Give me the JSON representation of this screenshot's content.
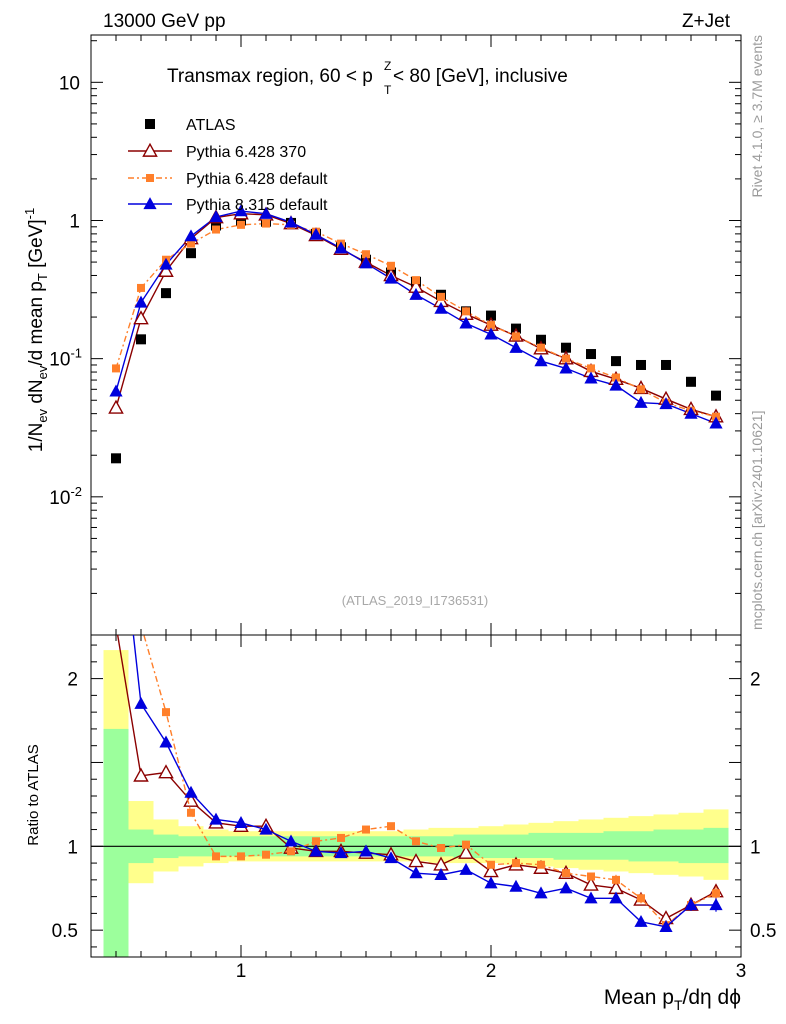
{
  "header": {
    "left": "13000 GeV pp",
    "right": "Z+Jet"
  },
  "side": {
    "rivet": "Rivet 4.1.0, ≥ 3.7M events",
    "mcplots": "mcplots.cern.ch [arXiv:2401.10621]"
  },
  "chart_data": {
    "type": "scatter",
    "title": "Transmax region, 60 < p_T^Z < 80 [GeV], inclusive",
    "watermark": "(ATLAS_2019_I1736531)",
    "xlabel": "Mean p_T/dη dϕ",
    "ylabel": "1/N_ev dN_ev/d mean p_T [GeV]^-1",
    "ratio_ylabel": "Ratio to ATLAS",
    "xlim": [
      0.4,
      3.0
    ],
    "ylim": [
      0.001,
      22
    ],
    "ratio_ylim": [
      0.34,
      2.26
    ],
    "x_ticks": [
      "1",
      "2",
      "3"
    ],
    "y_ticks": [
      "10",
      "1",
      "10^-1",
      "10^-2"
    ],
    "ratio_ticks": [
      "2",
      "1",
      "0.5"
    ],
    "legend": [
      "ATLAS",
      "Pythia 6.428 370",
      "Pythia 6.428 default",
      "Pythia 8.315 default"
    ],
    "x": [
      0.5,
      0.6,
      0.7,
      0.8,
      0.9,
      1.0,
      1.1,
      1.2,
      1.3,
      1.4,
      1.5,
      1.6,
      1.7,
      1.8,
      1.9,
      2.0,
      2.1,
      2.2,
      2.3,
      2.4,
      2.5,
      2.6,
      2.7,
      2.8,
      2.9
    ],
    "data": {
      "name": "ATLAS",
      "values": [
        0.019,
        0.138,
        0.298,
        0.58,
        0.92,
        1.0,
        0.98,
        0.96,
        0.8,
        0.64,
        0.52,
        0.42,
        0.36,
        0.29,
        0.22,
        0.205,
        0.165,
        0.137,
        0.12,
        0.108,
        0.096,
        0.09,
        0.09,
        0.068,
        0.054
      ]
    },
    "series": [
      {
        "name": "Pythia 6.428 370",
        "color": "#8b0000",
        "marker": "triangle-open",
        "values": [
          0.044,
          0.195,
          0.43,
          0.74,
          1.05,
          1.12,
          1.1,
          0.95,
          0.78,
          0.62,
          0.5,
          0.4,
          0.33,
          0.26,
          0.21,
          0.175,
          0.146,
          0.118,
          0.1,
          0.081,
          0.071,
          0.061,
          0.051,
          0.043,
          0.038
        ],
        "ratio": [
          2.32,
          1.42,
          1.44,
          1.27,
          1.14,
          1.12,
          1.12,
          0.99,
          0.97,
          0.97,
          0.96,
          0.95,
          0.91,
          0.89,
          0.96,
          0.85,
          0.89,
          0.87,
          0.84,
          0.77,
          0.75,
          0.68,
          0.57,
          0.65,
          0.73
        ],
        "ratio_err": [
          0,
          0.01,
          0.01,
          0.01,
          0.01,
          0.01,
          0.01,
          0.01,
          0.01,
          0.01,
          0.01,
          0.01,
          0.01,
          0.01,
          0.01,
          0.01,
          0.01,
          0.01,
          0.015,
          0.02,
          0.02,
          0.02,
          0.03,
          0.03,
          0.04
        ]
      },
      {
        "name": "Pythia 6.428 default",
        "color": "#ff7f2a",
        "marker": "square",
        "values": [
          0.085,
          0.325,
          0.52,
          0.68,
          0.86,
          0.93,
          0.95,
          0.93,
          0.83,
          0.68,
          0.57,
          0.47,
          0.37,
          0.28,
          0.22,
          0.175,
          0.145,
          0.12,
          0.1,
          0.085,
          0.073,
          0.06,
          0.048,
          0.042,
          0.038
        ],
        "ratio": [
          4.0,
          2.32,
          1.8,
          1.2,
          0.94,
          0.94,
          0.95,
          0.97,
          1.03,
          1.05,
          1.1,
          1.12,
          1.03,
          0.99,
          1.01,
          0.89,
          0.9,
          0.89,
          0.84,
          0.82,
          0.8,
          0.69,
          0.53,
          0.65,
          0.72
        ],
        "ratio_err": [
          0,
          0.01,
          0.01,
          0.01,
          0.01,
          0.01,
          0.01,
          0.01,
          0.01,
          0.01,
          0.01,
          0.01,
          0.01,
          0.01,
          0.01,
          0.01,
          0.01,
          0.02,
          0.02,
          0.02,
          0.03,
          0.03,
          0.03,
          0.03,
          0.04
        ]
      },
      {
        "name": "Pythia 8.315 default",
        "color": "#0000dd",
        "marker": "triangle",
        "values": [
          0.058,
          0.255,
          0.48,
          0.77,
          1.06,
          1.17,
          1.12,
          0.97,
          0.79,
          0.63,
          0.49,
          0.38,
          0.29,
          0.23,
          0.18,
          0.15,
          0.12,
          0.096,
          0.085,
          0.072,
          0.064,
          0.048,
          0.047,
          0.04,
          0.034
        ],
        "ratio": [
          3.2,
          1.85,
          1.62,
          1.32,
          1.16,
          1.14,
          1.1,
          1.03,
          0.97,
          0.96,
          0.97,
          0.93,
          0.84,
          0.83,
          0.86,
          0.78,
          0.76,
          0.72,
          0.75,
          0.69,
          0.69,
          0.55,
          0.52,
          0.65,
          0.65
        ],
        "ratio_err": [
          0,
          0.01,
          0.01,
          0.01,
          0.01,
          0.01,
          0.01,
          0.01,
          0.01,
          0.01,
          0.01,
          0.01,
          0.01,
          0.01,
          0.01,
          0.015,
          0.015,
          0.02,
          0.02,
          0.025,
          0.025,
          0.03,
          0.03,
          0.035,
          0.04
        ]
      }
    ],
    "uncertainty_bands": {
      "stat_color": "#9cff9c",
      "total_color": "#ffff8c",
      "stat": [
        [
          0.33,
          1.7
        ],
        [
          0.9,
          1.1
        ],
        [
          0.93,
          1.07
        ],
        [
          0.94,
          1.06
        ],
        [
          0.94,
          1.06
        ],
        [
          0.94,
          1.06
        ],
        [
          0.94,
          1.06
        ],
        [
          0.94,
          1.06
        ],
        [
          0.94,
          1.06
        ],
        [
          0.94,
          1.06
        ],
        [
          0.94,
          1.06
        ],
        [
          0.94,
          1.06
        ],
        [
          0.94,
          1.06
        ],
        [
          0.94,
          1.06
        ],
        [
          0.93,
          1.07
        ],
        [
          0.93,
          1.07
        ],
        [
          0.93,
          1.07
        ],
        [
          0.93,
          1.08
        ],
        [
          0.92,
          1.08
        ],
        [
          0.92,
          1.08
        ],
        [
          0.92,
          1.09
        ],
        [
          0.91,
          1.09
        ],
        [
          0.91,
          1.1
        ],
        [
          0.9,
          1.1
        ],
        [
          0.9,
          1.11
        ]
      ],
      "total": [
        [
          0.33,
          2.17
        ],
        [
          0.78,
          1.27
        ],
        [
          0.85,
          1.16
        ],
        [
          0.88,
          1.12
        ],
        [
          0.9,
          1.1
        ],
        [
          0.91,
          1.09
        ],
        [
          0.91,
          1.09
        ],
        [
          0.91,
          1.09
        ],
        [
          0.91,
          1.09
        ],
        [
          0.91,
          1.09
        ],
        [
          0.91,
          1.09
        ],
        [
          0.91,
          1.09
        ],
        [
          0.91,
          1.1
        ],
        [
          0.9,
          1.11
        ],
        [
          0.9,
          1.11
        ],
        [
          0.9,
          1.12
        ],
        [
          0.89,
          1.13
        ],
        [
          0.88,
          1.14
        ],
        [
          0.87,
          1.15
        ],
        [
          0.86,
          1.16
        ],
        [
          0.85,
          1.17
        ],
        [
          0.84,
          1.18
        ],
        [
          0.83,
          1.19
        ],
        [
          0.82,
          1.2
        ],
        [
          0.8,
          1.22
        ]
      ]
    }
  }
}
